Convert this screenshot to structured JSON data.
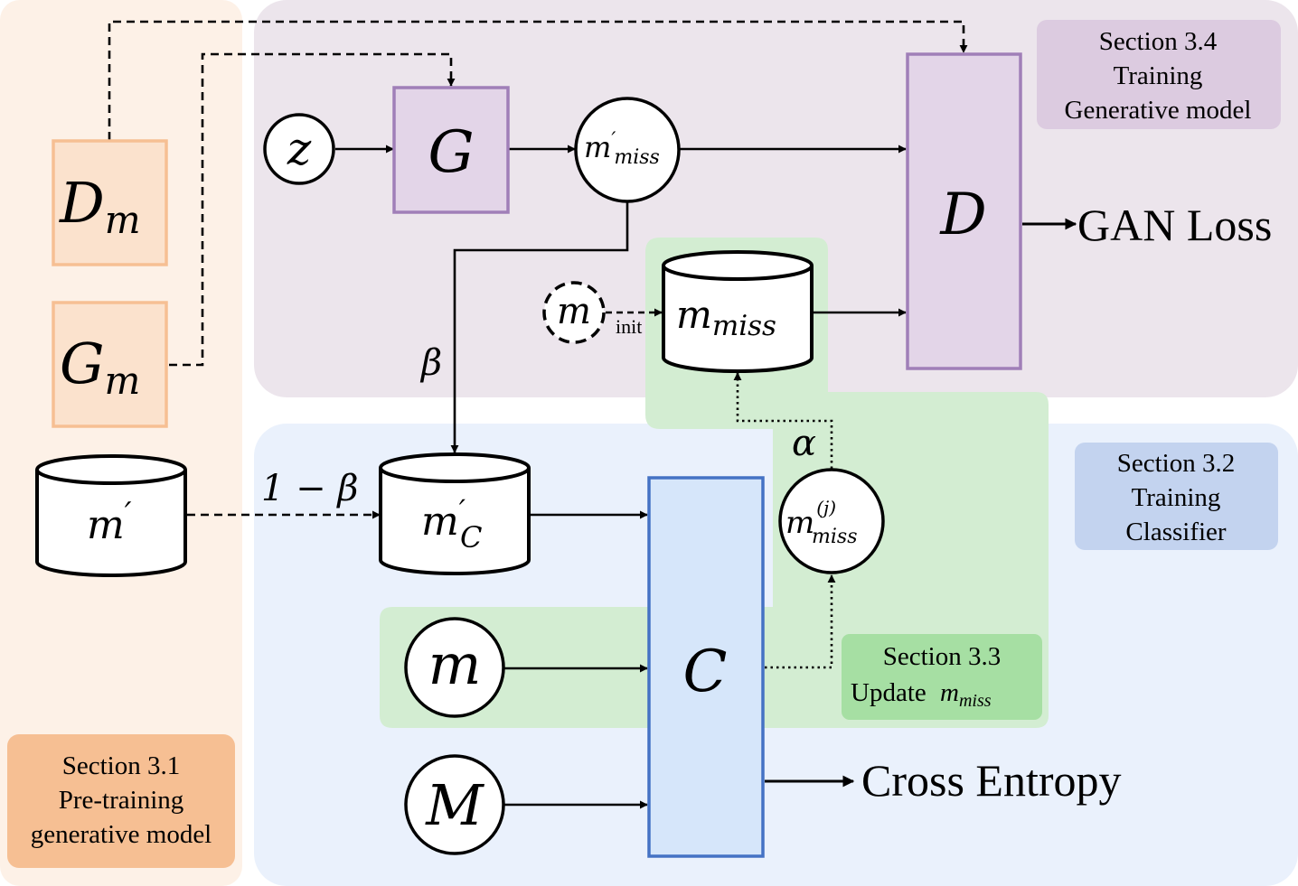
{
  "colors": {
    "orange_panel": "#fdf1e7",
    "orange_box_fill": "#fbe2cd",
    "orange_box_stroke": "#f6bf93",
    "orange_label": "#f6bf93",
    "purple_panel": "#ece5ec",
    "purple_box_fill": "#e3d5e8",
    "purple_box_stroke": "#a07fb8",
    "purple_label": "#dccbe0",
    "blue_panel": "#eaf1fc",
    "blue_box_fill": "#d6e6fa",
    "blue_box_stroke": "#4472c4",
    "blue_label": "#c3d3ef",
    "green_region": "#d3edd2",
    "green_label": "#a6dfa3"
  },
  "sections": {
    "s31": [
      "Section 3.1",
      "Pre-training",
      "generative model"
    ],
    "s32": [
      "Section 3.2",
      "Training",
      "Classifier"
    ],
    "s33": [
      "Section 3.3",
      "Update"
    ],
    "s33_var": "m",
    "s33_sub": "miss",
    "s34": [
      "Section 3.4",
      "Training",
      "Generative model"
    ]
  },
  "nodes": {
    "Dm": {
      "main": "D",
      "sub": "m"
    },
    "Gm": {
      "main": "G",
      "sub": "m"
    },
    "m_prime_db": {
      "main": "m",
      "sup": "′"
    },
    "z": "z",
    "G": "G",
    "D": "D",
    "C": "C",
    "m_prime_miss": {
      "main": "m",
      "sup": "′",
      "sub": "miss"
    },
    "m_init": "m",
    "m_miss_db": {
      "main": "m",
      "sub": "miss"
    },
    "m_prime_C": {
      "main": "m",
      "sup": "′",
      "sub": "C"
    },
    "m_miss_j": {
      "main": "m",
      "sup": "(j)",
      "sub": "miss"
    },
    "m_in": "m",
    "M_in": "M"
  },
  "edge_labels": {
    "init": "init",
    "beta": "β",
    "one_minus_beta": "1 − β",
    "alpha": "α"
  },
  "outputs": {
    "gan_loss": "GAN Loss",
    "cross_entropy": "Cross Entropy"
  }
}
